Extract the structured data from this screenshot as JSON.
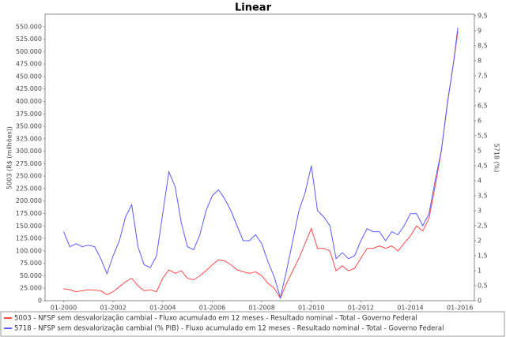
{
  "chart_data": {
    "type": "line",
    "title": "Linear",
    "y_label": "5003 (R$ (milhões))",
    "y2_label": "5718 (%)",
    "x": [
      "01-2000",
      "04-2000",
      "07-2000",
      "10-2000",
      "01-2001",
      "04-2001",
      "07-2001",
      "10-2001",
      "01-2002",
      "04-2002",
      "07-2002",
      "10-2002",
      "01-2003",
      "04-2003",
      "07-2003",
      "10-2003",
      "01-2004",
      "04-2004",
      "07-2004",
      "10-2004",
      "01-2005",
      "04-2005",
      "07-2005",
      "10-2005",
      "01-2006",
      "04-2006",
      "07-2006",
      "10-2006",
      "01-2007",
      "04-2007",
      "07-2007",
      "10-2007",
      "01-2008",
      "04-2008",
      "07-2008",
      "10-2008",
      "01-2009",
      "04-2009",
      "07-2009",
      "10-2009",
      "01-2010",
      "04-2010",
      "07-2010",
      "10-2010",
      "01-2011",
      "04-2011",
      "07-2011",
      "10-2011",
      "01-2012",
      "04-2012",
      "07-2012",
      "10-2012",
      "01-2013",
      "04-2013",
      "07-2013",
      "10-2013",
      "01-2014",
      "04-2014",
      "07-2014",
      "10-2014",
      "01-2015",
      "04-2015",
      "07-2015",
      "10-2015",
      "12-2015"
    ],
    "series": [
      {
        "name": "5003 - NFSP sem desvalorização cambial - Fluxo acumulado em 12 meses - Resultado nominal - Total - Governo Federal",
        "color": "#ff4a4a",
        "values": [
          24000,
          22000,
          18000,
          20000,
          22000,
          21000,
          20000,
          12000,
          18000,
          28000,
          38000,
          45000,
          30000,
          20000,
          22000,
          18000,
          45000,
          62000,
          55000,
          60000,
          45000,
          42000,
          50000,
          60000,
          72000,
          82000,
          80000,
          72000,
          62000,
          58000,
          55000,
          58000,
          50000,
          35000,
          25000,
          5000,
          35000,
          60000,
          85000,
          115000,
          145000,
          105000,
          105000,
          100000,
          60000,
          70000,
          60000,
          65000,
          85000,
          105000,
          105000,
          110000,
          105000,
          110000,
          100000,
          115000,
          130000,
          150000,
          140000,
          165000,
          230000,
          300000,
          400000,
          480000,
          540000
        ]
      },
      {
        "name": "5718 - NFSP sem desvalorização cambial (% PIB) - Fluxo acumulado em 12 meses - Resultado nominal - Total - Governo Federal",
        "color": "#5a5aff",
        "axis": "y2",
        "values": [
          2.3,
          1.8,
          1.9,
          1.8,
          1.85,
          1.8,
          1.4,
          0.9,
          1.5,
          2.0,
          2.8,
          3.2,
          1.8,
          1.2,
          1.1,
          1.5,
          2.9,
          4.3,
          3.8,
          2.6,
          1.8,
          1.7,
          2.2,
          3.0,
          3.5,
          3.7,
          3.4,
          3.0,
          2.5,
          2.0,
          2.0,
          2.2,
          1.9,
          1.3,
          0.8,
          0.1,
          1.0,
          2.0,
          3.0,
          3.6,
          4.5,
          3.0,
          2.8,
          2.5,
          1.4,
          1.6,
          1.4,
          1.5,
          2.0,
          2.4,
          2.3,
          2.3,
          2.0,
          2.3,
          2.2,
          2.5,
          2.9,
          2.9,
          2.5,
          2.9,
          4.0,
          5.0,
          6.6,
          8.0,
          9.1
        ]
      }
    ],
    "xlim": [
      "04-1999",
      "08-2016"
    ],
    "xticks": [
      "01-2000",
      "01-2002",
      "01-2004",
      "01-2006",
      "01-2008",
      "01-2010",
      "01-2012",
      "01-2014",
      "01-2016"
    ],
    "ylim": [
      0,
      575000
    ],
    "yticks": [
      0,
      {
        "value": 25000,
        "label": "25.000"
      },
      {
        "value": 50000,
        "label": "50.000"
      },
      {
        "value": 75000,
        "label": "75.000"
      },
      {
        "value": 100000,
        "label": "100.000"
      },
      {
        "value": 125000,
        "label": "125.000"
      },
      {
        "value": 150000,
        "label": "150.000"
      },
      {
        "value": 175000,
        "label": "175.000"
      },
      {
        "value": 200000,
        "label": "200.000"
      },
      {
        "value": 225000,
        "label": "225.000"
      },
      {
        "value": 250000,
        "label": "250.000"
      },
      {
        "value": 275000,
        "label": "275.000"
      },
      {
        "value": 300000,
        "label": "300.000"
      },
      {
        "value": 325000,
        "label": "325.000"
      },
      {
        "value": 350000,
        "label": "350.000"
      },
      {
        "value": 375000,
        "label": "375.000"
      },
      {
        "value": 400000,
        "label": "400.000"
      },
      {
        "value": 425000,
        "label": "425.000"
      },
      {
        "value": 450000,
        "label": "450.000"
      },
      {
        "value": 475000,
        "label": "475.000"
      },
      {
        "value": 500000,
        "label": "500.000"
      },
      {
        "value": 525000,
        "label": "525.000"
      },
      {
        "value": 550000,
        "label": "550.000"
      }
    ],
    "y2lim": [
      0,
      9.55
    ],
    "y2ticks": [
      0,
      {
        "value": 0.5,
        "label": "0,5"
      },
      1,
      {
        "value": 1.5,
        "label": "1,5"
      },
      2,
      {
        "value": 2.5,
        "label": "2,5"
      },
      3,
      {
        "value": 3.5,
        "label": "3,5"
      },
      4,
      {
        "value": 4.5,
        "label": "4,5"
      },
      5,
      {
        "value": 5.5,
        "label": "5,5"
      },
      6,
      {
        "value": 6.5,
        "label": "6,5"
      },
      7,
      {
        "value": 7.5,
        "label": "7,5"
      },
      8,
      {
        "value": 8.5,
        "label": "8,5"
      },
      9,
      {
        "value": 9.5,
        "label": "9,5"
      }
    ],
    "legend": "bottom"
  }
}
